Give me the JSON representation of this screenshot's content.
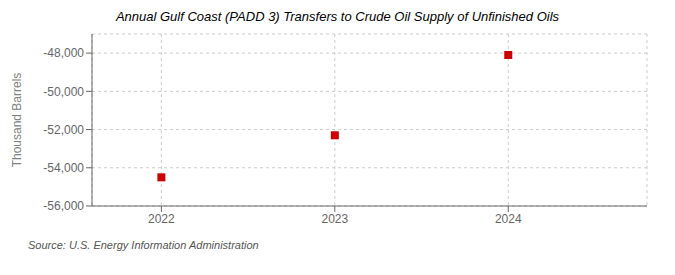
{
  "chart_data": {
    "type": "scatter",
    "title": "Annual Gulf Coast (PADD 3) Transfers to Crude Oil Supply of Unfinished Oils",
    "y_label": "Thousand Barrels",
    "annotations": [
      "Source: U.S. Energy Information Administration"
    ],
    "x": [
      2022,
      2023,
      2024
    ],
    "values": [
      -54500,
      -52300,
      -48100
    ],
    "color": "#cc0000",
    "marker": "square",
    "xlim": [
      2021.6,
      2024.8
    ],
    "xticks": [
      2022,
      2023,
      2024
    ],
    "ylim": [
      -56000,
      -47000
    ],
    "yticks": [
      {
        "value": -56000,
        "label": "-56,000"
      },
      {
        "value": -54000,
        "label": "-54,000"
      },
      {
        "value": -52000,
        "label": "-52,000"
      },
      {
        "value": -50000,
        "label": "-50,000"
      },
      {
        "value": -48000,
        "label": "-48,000"
      }
    ],
    "grid": true
  }
}
